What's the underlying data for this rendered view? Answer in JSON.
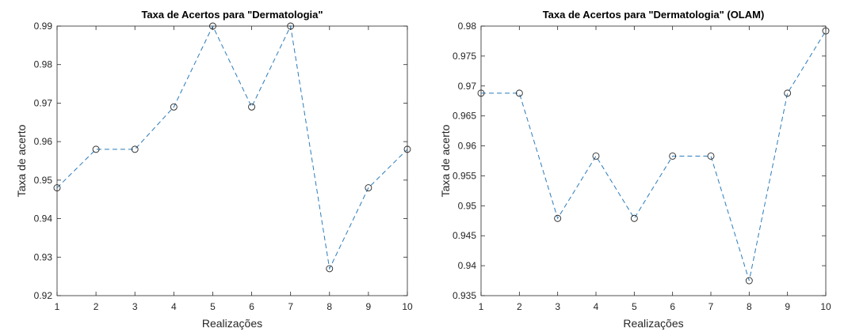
{
  "chart_data": [
    {
      "type": "line",
      "title": "Taxa de Acertos para \"Dermatologia\"",
      "xlabel": "Realizações",
      "ylabel": "Taxa de acerto",
      "xlim": [
        1,
        10
      ],
      "ylim": [
        0.92,
        0.99
      ],
      "x_ticks": [
        "1",
        "2",
        "3",
        "4",
        "5",
        "6",
        "7",
        "8",
        "9",
        "10"
      ],
      "y_ticks": [
        "0.92",
        "0.93",
        "0.94",
        "0.95",
        "0.96",
        "0.97",
        "0.98",
        "0.99"
      ],
      "x_tick_values": [
        1,
        2,
        3,
        4,
        5,
        6,
        7,
        8,
        9,
        10
      ],
      "y_tick_values": [
        0.92,
        0.93,
        0.94,
        0.95,
        0.96,
        0.97,
        0.98,
        0.99
      ],
      "x": [
        1,
        2,
        3,
        4,
        5,
        6,
        7,
        8,
        9,
        10
      ],
      "series": [
        {
          "values": [
            0.948,
            0.958,
            0.958,
            0.969,
            0.99,
            0.969,
            0.99,
            0.927,
            0.948,
            0.958
          ],
          "line_style": "dashed",
          "marker": "circle",
          "color": "#2b7bba"
        }
      ],
      "grid": false,
      "box": true
    },
    {
      "type": "line",
      "title": "Taxa de Acertos para \"Dermatologia\" (OLAM)",
      "xlabel": "Realizações",
      "ylabel": "Taxa de acerto",
      "xlim": [
        1,
        10
      ],
      "ylim": [
        0.935,
        0.98
      ],
      "x_ticks": [
        "1",
        "2",
        "3",
        "4",
        "5",
        "6",
        "7",
        "8",
        "9",
        "10"
      ],
      "y_ticks": [
        "0.935",
        "0.94",
        "0.945",
        "0.95",
        "0.955",
        "0.96",
        "0.965",
        "0.97",
        "0.975",
        "0.98"
      ],
      "x_tick_values": [
        1,
        2,
        3,
        4,
        5,
        6,
        7,
        8,
        9,
        10
      ],
      "y_tick_values": [
        0.935,
        0.94,
        0.945,
        0.95,
        0.955,
        0.96,
        0.965,
        0.97,
        0.975,
        0.98
      ],
      "x": [
        1,
        2,
        3,
        4,
        5,
        6,
        7,
        8,
        9,
        10
      ],
      "series": [
        {
          "values": [
            0.9688,
            0.9688,
            0.9479,
            0.9583,
            0.9479,
            0.9583,
            0.9583,
            0.9375,
            0.9688,
            0.9792
          ],
          "line_style": "dashed",
          "marker": "circle",
          "color": "#2b7bba"
        }
      ],
      "grid": false,
      "box": true
    }
  ]
}
